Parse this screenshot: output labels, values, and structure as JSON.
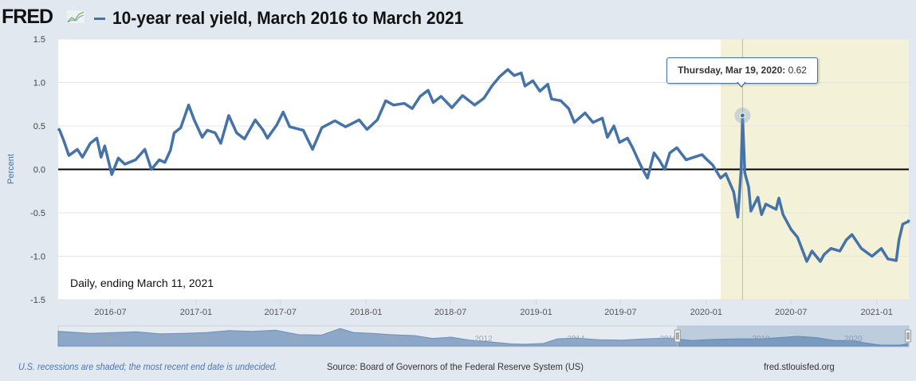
{
  "header": {
    "logo": "FRED",
    "title": "10-year real yield, March 2016 to March 2021"
  },
  "colors": {
    "series": "#4572a7",
    "recession_shade": "#f3f2d9",
    "plot_background": "#ffffff",
    "page_background": "#e1e8f0"
  },
  "tooltip": {
    "label": "Thursday, Mar 19, 2020:",
    "value": "0.62"
  },
  "chart_data": {
    "type": "line",
    "title": "10-year real yield, March 2016 to March 2021",
    "xlabel": "",
    "ylabel": "Percent",
    "ylim": [
      -1.5,
      1.5
    ],
    "xlim": [
      "2016-03-11",
      "2021-03-11"
    ],
    "yticks": [
      "1.5",
      "1.0",
      "0.5",
      "0.0",
      "-0.5",
      "-1.0",
      "-1.5"
    ],
    "xticks": [
      "2016-07",
      "2017-01",
      "2017-07",
      "2018-01",
      "2018-07",
      "2019-01",
      "2019-07",
      "2020-01",
      "2020-07",
      "2021-01"
    ],
    "grid": true,
    "annotation": "Daily, ending March 11, 2021",
    "recession_shading": [
      "2020-02-01",
      "2021-03-11"
    ],
    "highlighted_point": {
      "date": "2020-03-19",
      "value": 0.62
    },
    "series": [
      {
        "points": [
          [
            "2016-03-11",
            0.47
          ],
          [
            "2016-03-14",
            0.45
          ],
          [
            "2016-03-23",
            0.33
          ],
          [
            "2016-04-03",
            0.16
          ],
          [
            "2016-04-21",
            0.23
          ],
          [
            "2016-05-02",
            0.14
          ],
          [
            "2016-05-19",
            0.3
          ],
          [
            "2016-06-02",
            0.36
          ],
          [
            "2016-06-11",
            0.14
          ],
          [
            "2016-06-19",
            0.27
          ],
          [
            "2016-07-04",
            -0.06
          ],
          [
            "2016-07-18",
            0.13
          ],
          [
            "2016-08-01",
            0.06
          ],
          [
            "2016-08-24",
            0.11
          ],
          [
            "2016-09-13",
            0.23
          ],
          [
            "2016-09-27",
            0.0
          ],
          [
            "2016-10-14",
            0.11
          ],
          [
            "2016-10-26",
            0.08
          ],
          [
            "2016-11-07",
            0.22
          ],
          [
            "2016-11-15",
            0.42
          ],
          [
            "2016-11-29",
            0.48
          ],
          [
            "2016-12-16",
            0.74
          ],
          [
            "2016-12-28",
            0.57
          ],
          [
            "2017-01-14",
            0.37
          ],
          [
            "2017-01-25",
            0.45
          ],
          [
            "2017-02-11",
            0.42
          ],
          [
            "2017-02-23",
            0.3
          ],
          [
            "2017-03-12",
            0.62
          ],
          [
            "2017-03-29",
            0.42
          ],
          [
            "2017-04-15",
            0.35
          ],
          [
            "2017-05-08",
            0.57
          ],
          [
            "2017-05-25",
            0.45
          ],
          [
            "2017-06-03",
            0.36
          ],
          [
            "2017-06-23",
            0.51
          ],
          [
            "2017-07-07",
            0.66
          ],
          [
            "2017-07-21",
            0.49
          ],
          [
            "2017-08-19",
            0.45
          ],
          [
            "2017-09-08",
            0.23
          ],
          [
            "2017-09-28",
            0.48
          ],
          [
            "2017-10-26",
            0.56
          ],
          [
            "2017-11-18",
            0.49
          ],
          [
            "2017-12-17",
            0.57
          ],
          [
            "2018-01-03",
            0.46
          ],
          [
            "2018-01-25",
            0.57
          ],
          [
            "2018-02-12",
            0.79
          ],
          [
            "2018-03-01",
            0.74
          ],
          [
            "2018-03-24",
            0.76
          ],
          [
            "2018-04-10",
            0.7
          ],
          [
            "2018-04-27",
            0.84
          ],
          [
            "2018-05-14",
            0.91
          ],
          [
            "2018-05-25",
            0.77
          ],
          [
            "2018-06-11",
            0.84
          ],
          [
            "2018-07-04",
            0.71
          ],
          [
            "2018-07-27",
            0.85
          ],
          [
            "2018-08-22",
            0.74
          ],
          [
            "2018-09-11",
            0.82
          ],
          [
            "2018-09-28",
            0.96
          ],
          [
            "2018-10-15",
            1.07
          ],
          [
            "2018-11-01",
            1.15
          ],
          [
            "2018-11-15",
            1.08
          ],
          [
            "2018-11-30",
            1.11
          ],
          [
            "2018-12-08",
            0.96
          ],
          [
            "2018-12-25",
            1.02
          ],
          [
            "2019-01-09",
            0.9
          ],
          [
            "2019-01-26",
            0.98
          ],
          [
            "2019-02-03",
            0.81
          ],
          [
            "2019-02-23",
            0.79
          ],
          [
            "2019-03-12",
            0.7
          ],
          [
            "2019-03-24",
            0.54
          ],
          [
            "2019-04-16",
            0.65
          ],
          [
            "2019-05-03",
            0.54
          ],
          [
            "2019-05-23",
            0.59
          ],
          [
            "2019-06-03",
            0.37
          ],
          [
            "2019-06-17",
            0.5
          ],
          [
            "2019-06-29",
            0.31
          ],
          [
            "2019-07-16",
            0.36
          ],
          [
            "2019-07-27",
            0.25
          ],
          [
            "2019-08-13",
            0.05
          ],
          [
            "2019-08-28",
            -0.1
          ],
          [
            "2019-09-11",
            0.19
          ],
          [
            "2019-09-22",
            0.11
          ],
          [
            "2019-10-04",
            0.0
          ],
          [
            "2019-10-15",
            0.19
          ],
          [
            "2019-10-30",
            0.25
          ],
          [
            "2019-11-19",
            0.11
          ],
          [
            "2019-12-06",
            0.14
          ],
          [
            "2019-12-23",
            0.17
          ],
          [
            "2020-01-03",
            0.11
          ],
          [
            "2020-01-15",
            0.05
          ],
          [
            "2020-02-01",
            -0.1
          ],
          [
            "2020-02-12",
            -0.05
          ],
          [
            "2020-02-29",
            -0.26
          ],
          [
            "2020-03-09",
            -0.55
          ],
          [
            "2020-03-16",
            -0.01
          ],
          [
            "2020-03-19",
            0.62
          ],
          [
            "2020-03-24",
            -0.04
          ],
          [
            "2020-04-01",
            -0.2
          ],
          [
            "2020-04-06",
            -0.48
          ],
          [
            "2020-04-21",
            -0.32
          ],
          [
            "2020-04-29",
            -0.52
          ],
          [
            "2020-05-08",
            -0.4
          ],
          [
            "2020-05-30",
            -0.46
          ],
          [
            "2020-06-05",
            -0.33
          ],
          [
            "2020-06-14",
            -0.52
          ],
          [
            "2020-07-01",
            -0.69
          ],
          [
            "2020-07-15",
            -0.78
          ],
          [
            "2020-08-04",
            -1.06
          ],
          [
            "2020-08-15",
            -0.94
          ],
          [
            "2020-09-02",
            -1.06
          ],
          [
            "2020-09-10",
            -0.98
          ],
          [
            "2020-09-25",
            -0.91
          ],
          [
            "2020-10-14",
            -0.94
          ],
          [
            "2020-10-28",
            -0.81
          ],
          [
            "2020-11-09",
            -0.75
          ],
          [
            "2020-11-29",
            -0.91
          ],
          [
            "2020-12-22",
            -1.0
          ],
          [
            "2021-01-11",
            -0.91
          ],
          [
            "2021-01-25",
            -1.03
          ],
          [
            "2021-02-12",
            -1.05
          ],
          [
            "2021-02-18",
            -0.81
          ],
          [
            "2021-02-26",
            -0.63
          ],
          [
            "2021-03-10",
            -0.6
          ],
          [
            "2021-03-11",
            -0.58
          ]
        ]
      }
    ]
  },
  "navigator": {
    "labels": [
      "2004",
      "2006",
      "2008",
      "2010",
      "2012",
      "2014",
      "2016",
      "2018",
      "2020"
    ],
    "selected_range": [
      "2016-03-11",
      "2021-03-11"
    ],
    "series": [
      [
        2002.8,
        2.3
      ],
      [
        2003.5,
        1.8
      ],
      [
        2004.0,
        2.0
      ],
      [
        2004.5,
        2.2
      ],
      [
        2005.0,
        1.7
      ],
      [
        2005.5,
        1.8
      ],
      [
        2006.0,
        2.0
      ],
      [
        2006.5,
        2.5
      ],
      [
        2007.0,
        2.3
      ],
      [
        2007.5,
        2.6
      ],
      [
        2008.0,
        1.5
      ],
      [
        2008.5,
        1.4
      ],
      [
        2008.9,
        3.0
      ],
      [
        2009.2,
        2.0
      ],
      [
        2009.6,
        1.8
      ],
      [
        2010.0,
        1.5
      ],
      [
        2010.5,
        1.3
      ],
      [
        2010.9,
        0.6
      ],
      [
        2011.3,
        0.9
      ],
      [
        2011.7,
        0.2
      ],
      [
        2012.0,
        -0.1
      ],
      [
        2012.6,
        -0.7
      ],
      [
        2012.9,
        -0.8
      ],
      [
        2013.3,
        -0.6
      ],
      [
        2013.6,
        0.5
      ],
      [
        2014.0,
        0.7
      ],
      [
        2014.5,
        0.3
      ],
      [
        2015.0,
        0.2
      ],
      [
        2015.5,
        0.5
      ],
      [
        2016.0,
        0.7
      ],
      [
        2016.5,
        0.1
      ],
      [
        2017.0,
        0.4
      ],
      [
        2017.5,
        0.5
      ],
      [
        2018.0,
        0.5
      ],
      [
        2018.8,
        1.1
      ],
      [
        2019.2,
        0.8
      ],
      [
        2019.6,
        0.1
      ],
      [
        2020.0,
        0.1
      ],
      [
        2020.2,
        -0.4
      ],
      [
        2020.6,
        -1.0
      ],
      [
        2021.0,
        -1.0
      ],
      [
        2021.2,
        -0.6
      ]
    ]
  },
  "footer": {
    "recession_note": "U.S. recessions are shaded; the most recent end date is undecided.",
    "source": "Source: Board of Governors of the Federal Reserve System (US)",
    "site": "fred.stlouisfed.org"
  }
}
